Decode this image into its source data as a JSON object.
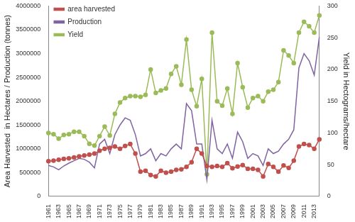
{
  "chart_data": {
    "type": "line",
    "categories": [
      1961,
      null,
      1963,
      null,
      1965,
      null,
      1967,
      null,
      1969,
      null,
      1971,
      null,
      1973,
      null,
      1975,
      null,
      1977,
      null,
      1979,
      null,
      1981,
      null,
      1983,
      null,
      1985,
      null,
      1987,
      null,
      1989,
      null,
      1991,
      null,
      1993,
      null,
      1995,
      null,
      1997,
      null,
      1999,
      null,
      2001,
      null,
      2003,
      null,
      2005,
      null,
      2007,
      null,
      2009,
      null,
      2011,
      null,
      2013,
      null
    ],
    "series": [
      {
        "name": "area harvested",
        "color": "#c0504d",
        "marker": "circle",
        "values": [
          740000,
          750000,
          770000,
          790000,
          800000,
          820000,
          840000,
          860000,
          880000,
          900000,
          960000,
          1000000,
          1020000,
          1050000,
          1000000,
          1060000,
          1100000,
          900000,
          520000,
          540000,
          450000,
          420000,
          540000,
          500000,
          520000,
          560000,
          570000,
          620000,
          720000,
          1000000,
          900000,
          640000,
          620000,
          640000,
          620000,
          700000,
          590000,
          630000,
          660000,
          580000,
          580000,
          560000,
          420000,
          680000,
          620000,
          520000,
          650000,
          600000,
          750000,
          1050000,
          1100000,
          1080000,
          1000000,
          1200000
        ]
      },
      {
        "name": "Production",
        "color": "#8064a2",
        "marker": "none",
        "values": [
          650000,
          620000,
          560000,
          640000,
          700000,
          750000,
          800000,
          780000,
          720000,
          600000,
          1100000,
          1200000,
          900000,
          1300000,
          1500000,
          1650000,
          1600000,
          1300000,
          850000,
          900000,
          1000000,
          750000,
          900000,
          850000,
          1000000,
          1100000,
          1000000,
          1950000,
          1800000,
          1100000,
          1100000,
          350000,
          1600000,
          1000000,
          900000,
          1100000,
          800000,
          1350000,
          1150000,
          800000,
          900000,
          850000,
          650000,
          1000000,
          900000,
          950000,
          1100000,
          1200000,
          1400000,
          2700000,
          3000000,
          2850000,
          2550000,
          3350000
        ]
      },
      {
        "name": "Yield",
        "color": "#9bbb59",
        "marker": "circle",
        "axis": "y2",
        "values": [
          100,
          98,
          91,
          97,
          98,
          102,
          102,
          95,
          83,
          80,
          95,
          110,
          96,
          130,
          148,
          155,
          158,
          158,
          157,
          160,
          200,
          163,
          167,
          170,
          193,
          205,
          176,
          247,
          168,
          142,
          185,
          35,
          258,
          150,
          143,
          170,
          130,
          210,
          172,
          140,
          155,
          158,
          150,
          165,
          168,
          180,
          230,
          222,
          210,
          258,
          275,
          268,
          258,
          285
        ]
      }
    ],
    "y_label": "Area Harvested  in Hectares / Production (tonnes)",
    "y2_label": "Yield in Hectograms/hectare",
    "ylim": [
      0,
      4000000
    ],
    "yticks": [
      0,
      500000,
      1000000,
      1500000,
      2000000,
      2500000,
      3000000,
      3500000,
      4000000
    ],
    "y2lim": [
      0,
      300
    ],
    "y2ticks": [
      0,
      50,
      100,
      150,
      200,
      250,
      300
    ],
    "grid": false,
    "legend": "top-left"
  }
}
